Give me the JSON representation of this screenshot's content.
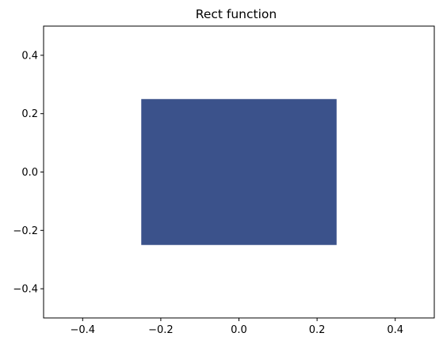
{
  "chart_data": {
    "type": "heatmap",
    "title": "Rect function",
    "xlabel": "",
    "ylabel": "",
    "xlim": [
      -0.5,
      0.5
    ],
    "ylim": [
      -0.5,
      0.5
    ],
    "x_ticks": [
      -0.4,
      -0.2,
      0.0,
      0.2,
      0.4
    ],
    "y_ticks": [
      -0.4,
      -0.2,
      0.0,
      0.2,
      0.4
    ],
    "x_tick_labels": [
      "−0.4",
      "−0.2",
      "0.0",
      "0.2",
      "0.4"
    ],
    "y_tick_labels": [
      "−0.4",
      "−0.2",
      "0.0",
      "0.2",
      "0.4"
    ],
    "grid": false,
    "regions": [
      {
        "x_range": [
          -0.25,
          0.25
        ],
        "y_range": [
          -0.25,
          0.25
        ],
        "value": 1,
        "color": "#3b528b"
      }
    ],
    "background_value": 0,
    "background_color": "#ffffff"
  }
}
